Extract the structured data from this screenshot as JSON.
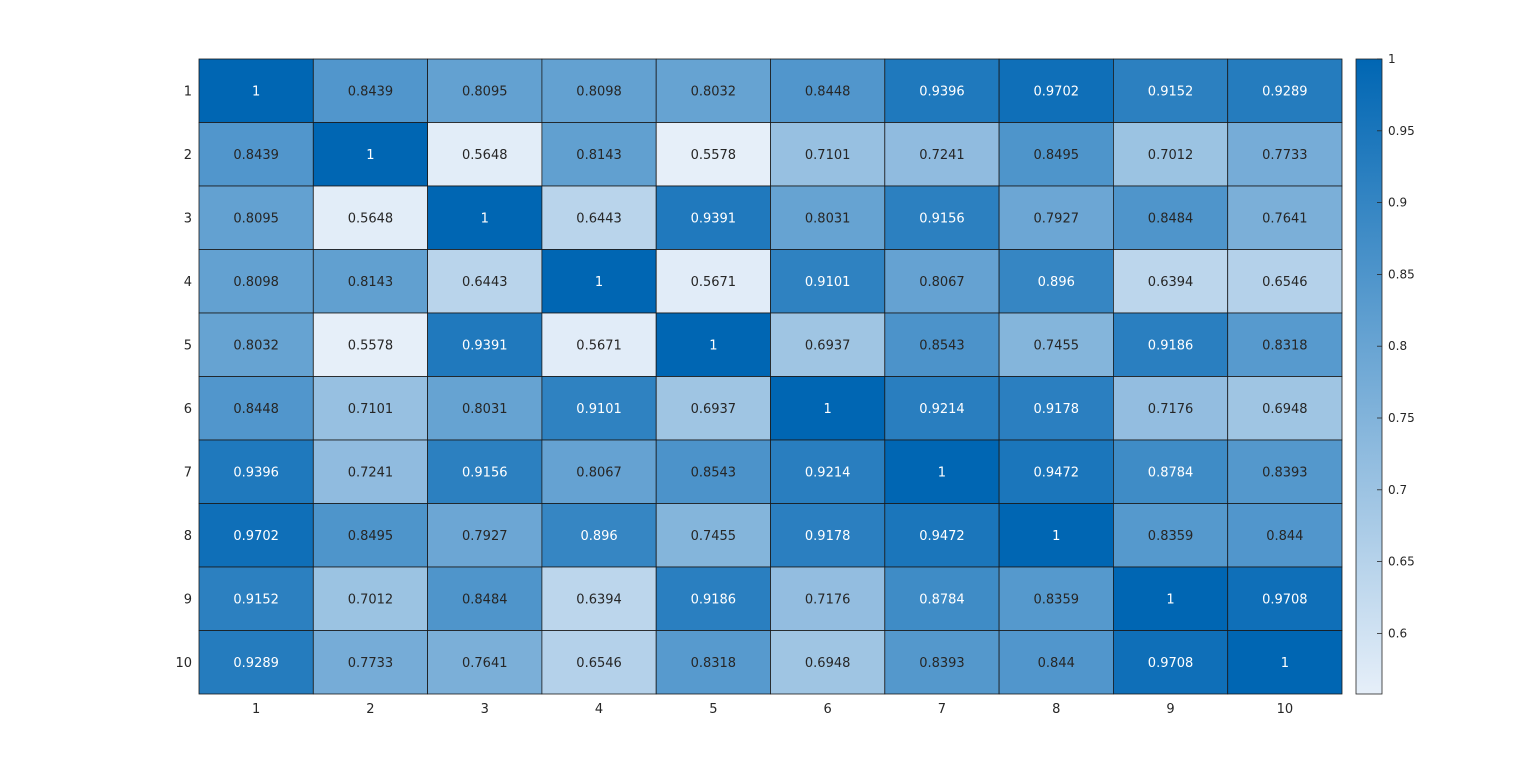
{
  "chart_data": {
    "type": "heatmap",
    "title": "",
    "xlabel": "",
    "ylabel": "",
    "x_labels": [
      "1",
      "2",
      "3",
      "4",
      "5",
      "6",
      "7",
      "8",
      "9",
      "10"
    ],
    "y_labels": [
      "1",
      "2",
      "3",
      "4",
      "5",
      "6",
      "7",
      "8",
      "9",
      "10"
    ],
    "cell_labels": [
      [
        "1",
        "0.8439",
        "0.8095",
        "0.8098",
        "0.8032",
        "0.8448",
        "0.9396",
        "0.9702",
        "0.9152",
        "0.9289"
      ],
      [
        "0.8439",
        "1",
        "0.5648",
        "0.8143",
        "0.5578",
        "0.7101",
        "0.7241",
        "0.8495",
        "0.7012",
        "0.7733"
      ],
      [
        "0.8095",
        "0.5648",
        "1",
        "0.6443",
        "0.9391",
        "0.8031",
        "0.9156",
        "0.7927",
        "0.8484",
        "0.7641"
      ],
      [
        "0.8098",
        "0.8143",
        "0.6443",
        "1",
        "0.5671",
        "0.9101",
        "0.8067",
        "0.896",
        "0.6394",
        "0.6546"
      ],
      [
        "0.8032",
        "0.5578",
        "0.9391",
        "0.5671",
        "1",
        "0.6937",
        "0.8543",
        "0.7455",
        "0.9186",
        "0.8318"
      ],
      [
        "0.8448",
        "0.7101",
        "0.8031",
        "0.9101",
        "0.6937",
        "1",
        "0.9214",
        "0.9178",
        "0.7176",
        "0.6948"
      ],
      [
        "0.9396",
        "0.7241",
        "0.9156",
        "0.8067",
        "0.8543",
        "0.9214",
        "1",
        "0.9472",
        "0.8784",
        "0.8393"
      ],
      [
        "0.9702",
        "0.8495",
        "0.7927",
        "0.896",
        "0.7455",
        "0.9178",
        "0.9472",
        "1",
        "0.8359",
        "0.844"
      ],
      [
        "0.9152",
        "0.7012",
        "0.8484",
        "0.6394",
        "0.9186",
        "0.7176",
        "0.8784",
        "0.8359",
        "1",
        "0.9708"
      ],
      [
        "0.9289",
        "0.7733",
        "0.7641",
        "0.6546",
        "0.8318",
        "0.6948",
        "0.8393",
        "0.844",
        "0.9708",
        "1"
      ]
    ],
    "colorbar": {
      "ticks": [
        "0.6",
        "0.65",
        "0.7",
        "0.75",
        "0.8",
        "0.85",
        "0.9",
        "0.95",
        "1"
      ],
      "range": [
        0.5578,
        1
      ]
    },
    "colormap": [
      "#e6eff9",
      "#0066b3"
    ],
    "grid": true
  }
}
